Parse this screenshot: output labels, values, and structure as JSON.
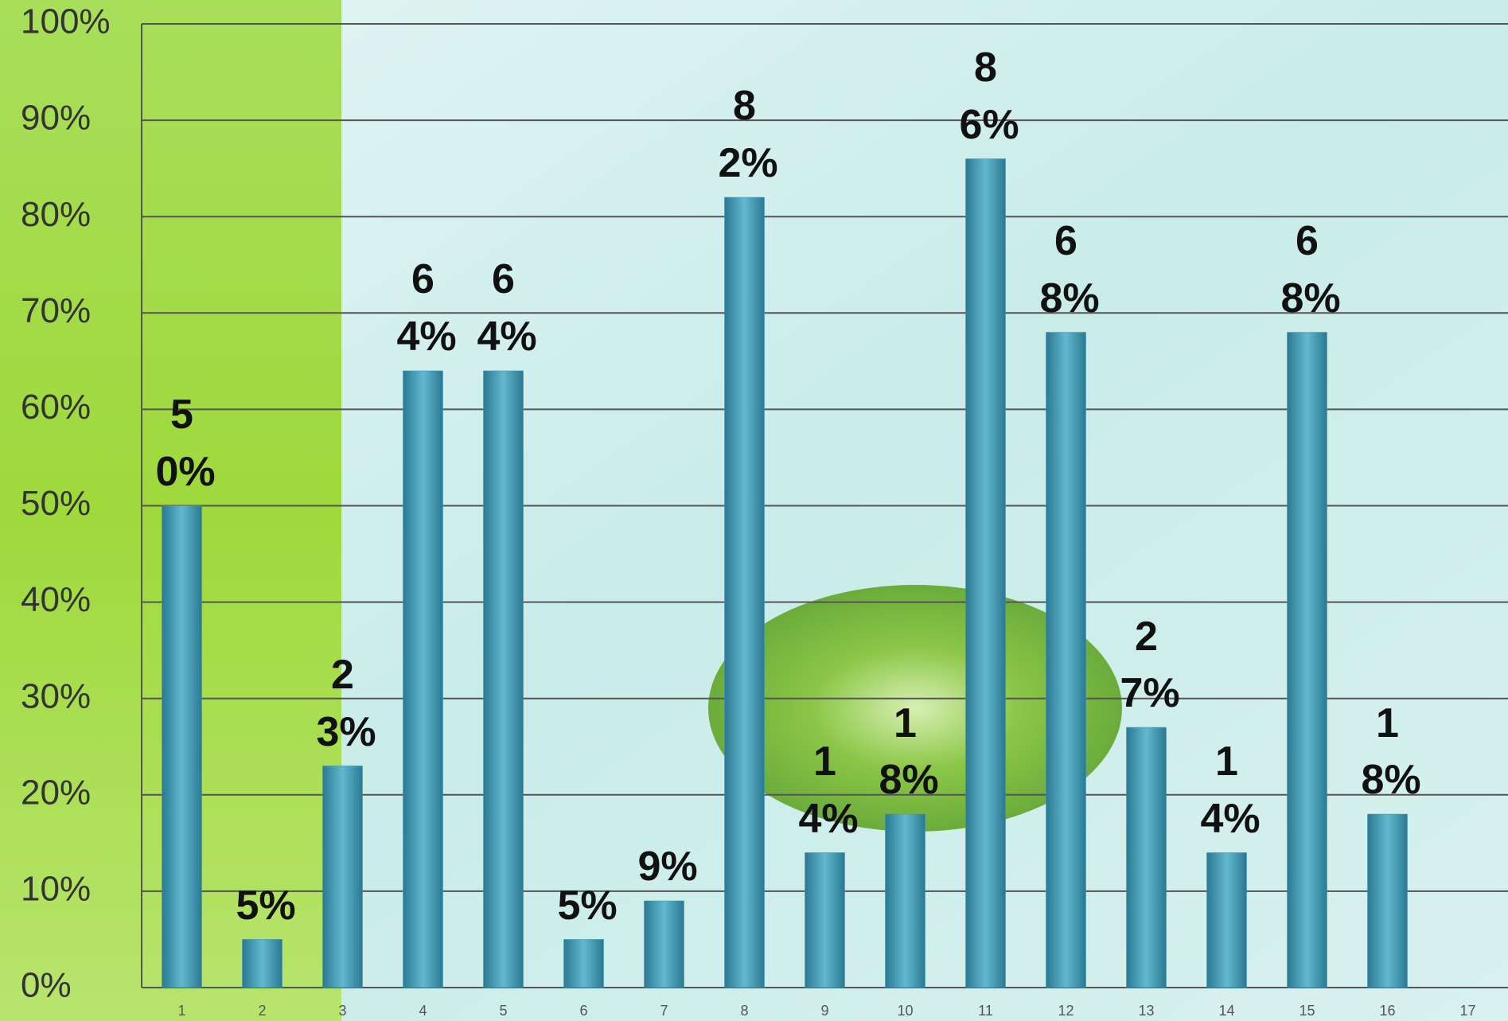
{
  "chart_data": {
    "type": "bar",
    "categories": [
      "1",
      "2",
      "3",
      "4",
      "5",
      "6",
      "7",
      "8",
      "9",
      "10",
      "11",
      "12",
      "13",
      "14",
      "15",
      "16",
      "17"
    ],
    "values": [
      50,
      5,
      23,
      64,
      64,
      5,
      9,
      82,
      14,
      18,
      86,
      68,
      27,
      14,
      68,
      18,
      null
    ],
    "value_labels": [
      "50%",
      "5%",
      "23%",
      "64%",
      "64%",
      "5%",
      "9%",
      "82%",
      "14%",
      "18%",
      "86%",
      "68%",
      "27%",
      "14%",
      "68%",
      "18%",
      null
    ],
    "color": "#3f95b1",
    "ylim": [
      0,
      100
    ],
    "yticks": [
      {
        "value": 0,
        "label": "0%"
      },
      {
        "value": 10,
        "label": "10%"
      },
      {
        "value": 20,
        "label": "20%"
      },
      {
        "value": 30,
        "label": "30%"
      },
      {
        "value": 40,
        "label": "40%"
      },
      {
        "value": 50,
        "label": "50%"
      },
      {
        "value": 60,
        "label": "60%"
      },
      {
        "value": 70,
        "label": "70%"
      },
      {
        "value": 80,
        "label": "80%"
      },
      {
        "value": 90,
        "label": "90%"
      },
      {
        "value": 100,
        "label": "100%"
      }
    ],
    "grid": true
  }
}
